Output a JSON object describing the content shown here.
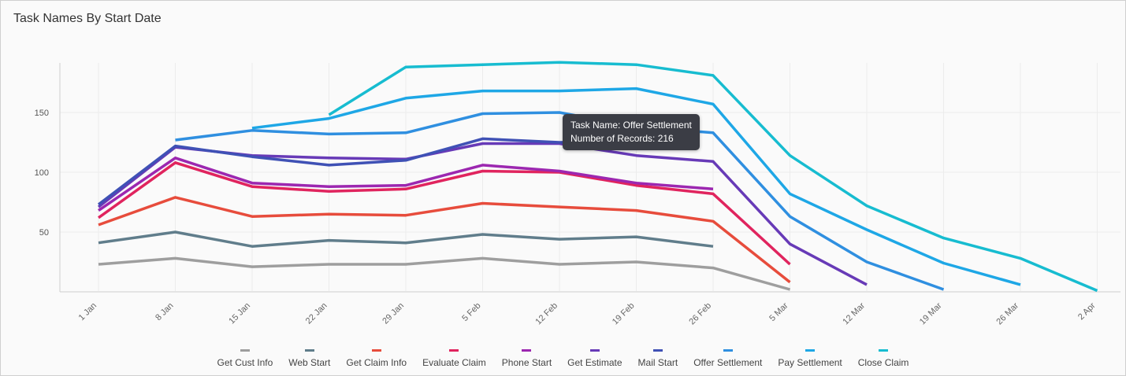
{
  "header": {
    "title": "Task Names By Start Date"
  },
  "tooltip": {
    "name_line": "Task Name: Offer Settlement",
    "records_line": "Number of Records: 216"
  },
  "chart_data": {
    "type": "line",
    "title": "Task Names By Start Date",
    "xlabel": "",
    "ylabel": "",
    "ylim": [
      0,
      200
    ],
    "y_ticks": [
      50,
      100,
      150
    ],
    "categories": [
      "1 Jan",
      "8 Jan",
      "15 Jan",
      "22 Jan",
      "29 Jan",
      "5 Feb",
      "12 Feb",
      "19 Feb",
      "26 Feb",
      "5 Mar",
      "12 Mar",
      "19 Mar",
      "26 Mar",
      "2 Apr"
    ],
    "legend_position": "bottom-center",
    "series": [
      {
        "name": "Get Cust Info",
        "color": "#9e9e9e",
        "values": [
          23,
          28,
          21,
          23,
          23,
          28,
          23,
          25,
          20,
          2,
          null,
          null,
          null,
          null
        ]
      },
      {
        "name": "Web Start",
        "color": "#607d8b",
        "values": [
          41,
          50,
          38,
          43,
          41,
          48,
          44,
          46,
          38,
          null,
          null,
          null,
          null,
          null
        ]
      },
      {
        "name": "Get Claim Info",
        "color": "#e74c3c",
        "values": [
          56,
          79,
          63,
          65,
          64,
          74,
          71,
          68,
          59,
          8,
          null,
          null,
          null,
          null
        ]
      },
      {
        "name": "Evaluate Claim",
        "color": "#e0245e",
        "values": [
          62,
          108,
          88,
          84,
          86,
          101,
          100,
          89,
          82,
          23,
          null,
          null,
          null,
          null
        ]
      },
      {
        "name": "Phone Start",
        "color": "#9c27b0",
        "values": [
          68,
          112,
          91,
          88,
          89,
          106,
          101,
          91,
          86,
          null,
          null,
          null,
          null,
          null
        ]
      },
      {
        "name": "Get Estimate",
        "color": "#673ab7",
        "values": [
          71,
          121,
          114,
          112,
          111,
          124,
          124,
          114,
          109,
          40,
          6,
          null,
          null,
          null
        ]
      },
      {
        "name": "Mail Start",
        "color": "#3f51b5",
        "values": [
          73,
          122,
          113,
          106,
          110,
          128,
          125,
          126,
          null,
          null,
          null,
          null,
          null,
          null
        ]
      },
      {
        "name": "Offer Settlement",
        "color": "#2f8fe0",
        "values": [
          null,
          127,
          135,
          132,
          133,
          149,
          150,
          138,
          133,
          63,
          25,
          2,
          null,
          null
        ]
      },
      {
        "name": "Pay Settlement",
        "color": "#1ea7e6",
        "values": [
          null,
          null,
          137,
          145,
          162,
          168,
          168,
          170,
          157,
          82,
          52,
          24,
          6,
          null
        ]
      },
      {
        "name": "Close Claim",
        "color": "#17bcd0",
        "values": [
          null,
          null,
          null,
          148,
          188,
          190,
          192,
          190,
          181,
          114,
          72,
          45,
          28,
          1
        ]
      }
    ]
  }
}
